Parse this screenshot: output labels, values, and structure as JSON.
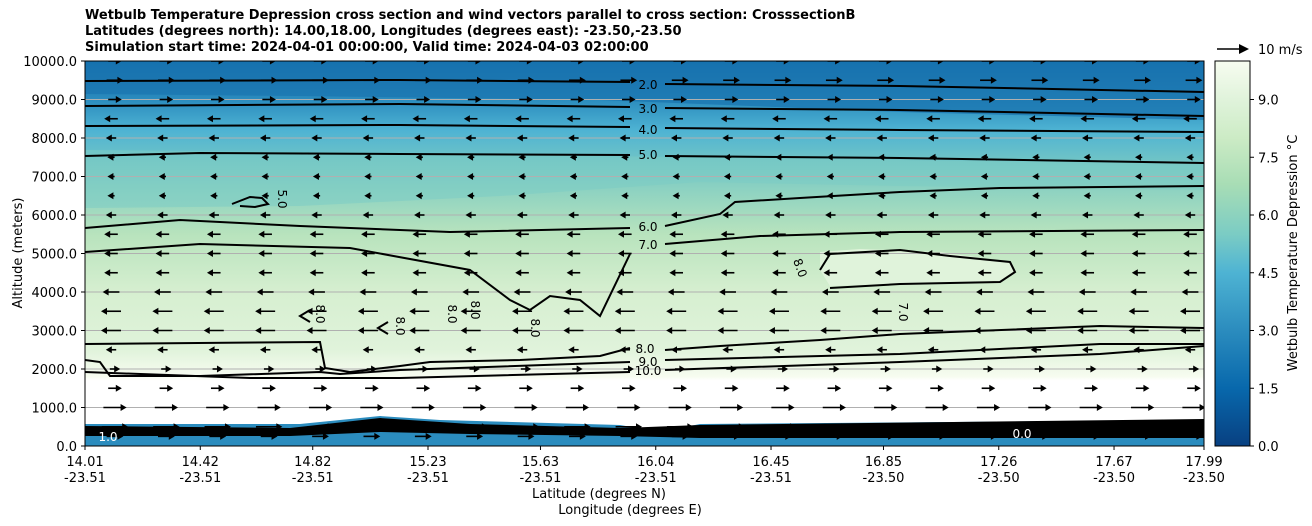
{
  "chart_data": {
    "type": "heatmap",
    "title_lines": [
      "Wetbulb Temperature Depression cross section and wind vectors parallel to cross section: CrosssectionB",
      "Latitudes (degrees north): 14.00,18.00, Longitudes (degrees east): -23.50,-23.50",
      "Simulation start time: 2024-04-01 00:00:00, Valid time: 2024-04-03 02:00:00"
    ],
    "ylabel": "Altitude (meters)",
    "xlabel_lat": "Latitude (degrees N)",
    "xlabel_lon": "Longitude (degrees E)",
    "ylim": [
      0,
      10000
    ],
    "y_ticks": [
      "0.0",
      "1000.0",
      "2000.0",
      "3000.0",
      "4000.0",
      "5000.0",
      "6000.0",
      "7000.0",
      "8000.0",
      "9000.0",
      "10000.0"
    ],
    "x_ticks": [
      {
        "lat": "14.01",
        "lon": "-23.51"
      },
      {
        "lat": "14.42",
        "lon": "-23.51"
      },
      {
        "lat": "14.82",
        "lon": "-23.51"
      },
      {
        "lat": "15.23",
        "lon": "-23.51"
      },
      {
        "lat": "15.63",
        "lon": "-23.51"
      },
      {
        "lat": "16.04",
        "lon": "-23.51"
      },
      {
        "lat": "16.45",
        "lon": "-23.51"
      },
      {
        "lat": "16.85",
        "lon": "-23.50"
      },
      {
        "lat": "17.26",
        "lon": "-23.50"
      },
      {
        "lat": "17.67",
        "lon": "-23.50"
      },
      {
        "lat": "17.99",
        "lon": "-23.50"
      }
    ],
    "grid": "horizontal",
    "colorbar": {
      "label": "Wetbulb Temperature Depression °C",
      "range": [
        0,
        10
      ],
      "ticks": [
        "0.0",
        "1.5",
        "3.0",
        "4.5",
        "6.0",
        "7.5",
        "9.0"
      ],
      "colormap": [
        "#084081",
        "#0868ac",
        "#2b8cbe",
        "#4eb3d3",
        "#7bccc4",
        "#a8ddb5",
        "#ccebc5",
        "#e0f3db",
        "#f7fcf0"
      ]
    },
    "wind_key": {
      "label": "10 m/s",
      "speed": 10
    },
    "contour_labels": [
      "2.0",
      "3.0",
      "4.0",
      "5.0",
      "6.0",
      "7.0",
      "8.0",
      "9.0",
      "10.0",
      "5.0",
      "8.0",
      "8.0",
      "8.0",
      "8.0",
      "8.0",
      "8.0",
      "7.0",
      "1.0",
      "0.0"
    ],
    "wind_rows": [
      {
        "alt": 250,
        "dir": 1,
        "speed": 4
      },
      {
        "alt": 500,
        "dir": 1,
        "speed": 7
      },
      {
        "alt": 1000,
        "dir": 1,
        "speed": 6
      },
      {
        "alt": 1500,
        "dir": 1,
        "speed": 3
      },
      {
        "alt": 2000,
        "dir": 1,
        "speed": 2
      },
      {
        "alt": 2500,
        "dir": -1,
        "speed": 2
      },
      {
        "alt": 3000,
        "dir": -1,
        "speed": 5
      },
      {
        "alt": 3500,
        "dir": -1,
        "speed": 5
      },
      {
        "alt": 4000,
        "dir": -1,
        "speed": 4
      },
      {
        "alt": 4500,
        "dir": -1,
        "speed": 3
      },
      {
        "alt": 5000,
        "dir": -1,
        "speed": 3
      },
      {
        "alt": 5500,
        "dir": -1,
        "speed": 3
      },
      {
        "alt": 6000,
        "dir": -1,
        "speed": 2
      },
      {
        "alt": 6500,
        "dir": -1,
        "speed": 1
      },
      {
        "alt": 7000,
        "dir": -1,
        "speed": 1
      },
      {
        "alt": 7500,
        "dir": -1,
        "speed": 1
      },
      {
        "alt": 8000,
        "dir": -1,
        "speed": 2
      },
      {
        "alt": 8500,
        "dir": -1,
        "speed": 3
      },
      {
        "alt": 9000,
        "dir": 1,
        "speed": 3
      },
      {
        "alt": 9500,
        "dir": 1,
        "speed": 4
      },
      {
        "alt": 10000,
        "dir": 1,
        "speed": 3
      }
    ]
  }
}
